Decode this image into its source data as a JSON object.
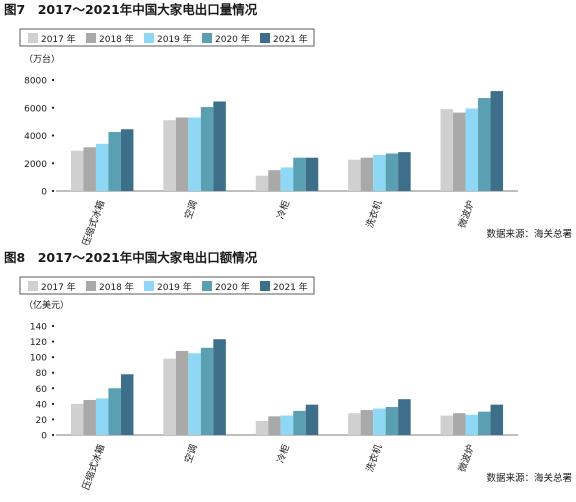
{
  "chart_data": [
    {
      "type": "bar",
      "title": "图7　2017～2021年中国大家电出口量情况",
      "unit": "（万台）",
      "source": "数据来源：海关总署",
      "legend": [
        "2017 年",
        "2018 年",
        "2019 年",
        "2020 年",
        "2021 年"
      ],
      "categories": [
        "压缩式冰箱",
        "空调",
        "冷柜",
        "洗衣机",
        "微波炉"
      ],
      "series": [
        {
          "name": "2017 年",
          "values": [
            2900,
            5100,
            1100,
            2250,
            5900
          ]
        },
        {
          "name": "2018 年",
          "values": [
            3150,
            5300,
            1500,
            2400,
            5650
          ]
        },
        {
          "name": "2019 年",
          "values": [
            3400,
            5300,
            1700,
            2600,
            5950
          ]
        },
        {
          "name": "2020 年",
          "values": [
            4250,
            6050,
            2400,
            2700,
            6700
          ]
        },
        {
          "name": "2021 年",
          "values": [
            4450,
            6450,
            2400,
            2800,
            7200
          ]
        }
      ],
      "yticks": [
        "0",
        "2000",
        "4000",
        "6000",
        "8000"
      ],
      "ylim": [
        0,
        8000
      ]
    },
    {
      "type": "bar",
      "title": "图8　2017～2021年中国大家电出口额情况",
      "unit": "（亿美元）",
      "source": "数据来源：海关总署",
      "legend": [
        "2017 年",
        "2018 年",
        "2019 年",
        "2020 年",
        "2021 年"
      ],
      "categories": [
        "压缩式冰箱",
        "空调",
        "冷柜",
        "洗衣机",
        "微波炉"
      ],
      "series": [
        {
          "name": "2017 年",
          "values": [
            40,
            98,
            18,
            28,
            25
          ]
        },
        {
          "name": "2018 年",
          "values": [
            45,
            108,
            24,
            32,
            28
          ]
        },
        {
          "name": "2019 年",
          "values": [
            47,
            105,
            25,
            34,
            26
          ]
        },
        {
          "name": "2020 年",
          "values": [
            60,
            112,
            31,
            36,
            30
          ]
        },
        {
          "name": "2021 年",
          "values": [
            78,
            123,
            39,
            46,
            39
          ]
        }
      ],
      "yticks": [
        "0",
        "20",
        "40",
        "60",
        "80",
        "100",
        "120",
        "140"
      ],
      "ylim": [
        0,
        140
      ]
    }
  ],
  "colors": [
    "#d0d0d0",
    "#a9a9a9",
    "#8fd8f5",
    "#5a9fb2",
    "#3d6f8a"
  ]
}
